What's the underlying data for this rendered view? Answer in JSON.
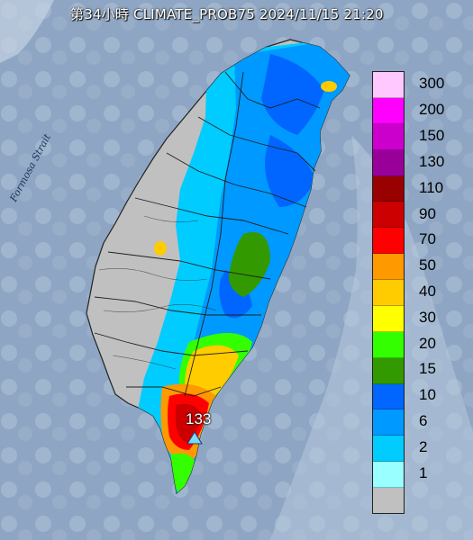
{
  "header": {
    "title": "第34小時  CLIMATE_PROB75 2024/11/15 21:20"
  },
  "map": {
    "sea_label": "Formosa Strait",
    "peak_value": "133"
  },
  "legend": {
    "items": [
      {
        "label": "300",
        "color": "#ffc8ff"
      },
      {
        "label": "200",
        "color": "#ff00ff"
      },
      {
        "label": "150",
        "color": "#cc00cc"
      },
      {
        "label": "130",
        "color": "#990099"
      },
      {
        "label": "110",
        "color": "#990000"
      },
      {
        "label": "90",
        "color": "#cc0000"
      },
      {
        "label": "70",
        "color": "#ff0000"
      },
      {
        "label": "50",
        "color": "#ff9900"
      },
      {
        "label": "40",
        "color": "#ffcc00"
      },
      {
        "label": "30",
        "color": "#ffff00"
      },
      {
        "label": "20",
        "color": "#33ff00"
      },
      {
        "label": "15",
        "color": "#339900"
      },
      {
        "label": "10",
        "color": "#0066ff"
      },
      {
        "label": "6",
        "color": "#0099ff"
      },
      {
        "label": "2",
        "color": "#00ccff"
      },
      {
        "label": "1",
        "color": "#99ffff"
      },
      {
        "label": "",
        "color": "#c0c0c0"
      }
    ]
  }
}
